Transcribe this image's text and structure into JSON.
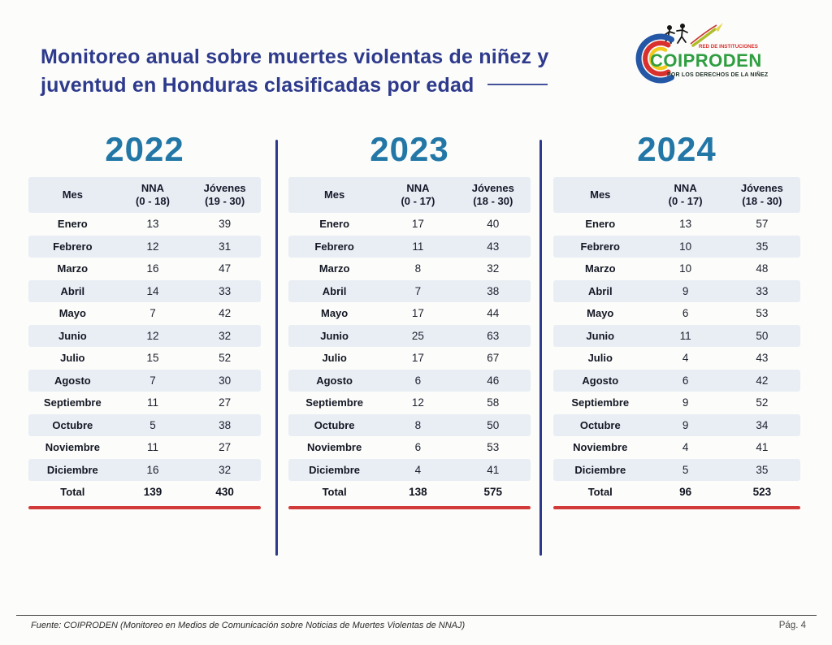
{
  "header": {
    "title_line1": "Monitoreo anual sobre muertes violentas de niñez y",
    "title_line2": "juventud en Honduras clasificadas por edad",
    "logo": {
      "tagline_top": "RED DE INSTITUCIONES",
      "name": "COIPRODEN",
      "tagline_bottom": "POR LOS DERECHOS DE LA NIÑEZ"
    }
  },
  "colors": {
    "title_navy": "#2e3a8c",
    "year_blue": "#2277a7",
    "row_alt": "#e9eef5",
    "header_bg": "#e8edf4",
    "divider_navy": "#2d3a8c",
    "accent_red": "#d23a3a",
    "logo_green": "#2f9e41",
    "logo_red": "#d8312e",
    "logo_blue": "#2457a5",
    "logo_yellow": "#f2c91d"
  },
  "tables": [
    {
      "year": "2022",
      "columns": [
        {
          "title": "Mes",
          "range": ""
        },
        {
          "title": "NNA",
          "range": "(0 - 18)"
        },
        {
          "title": "Jóvenes",
          "range": "(19 - 30)"
        }
      ],
      "rows": [
        {
          "mes": "Enero",
          "nna": "13",
          "jovenes": "39"
        },
        {
          "mes": "Febrero",
          "nna": "12",
          "jovenes": "31"
        },
        {
          "mes": "Marzo",
          "nna": "16",
          "jovenes": "47"
        },
        {
          "mes": "Abril",
          "nna": "14",
          "jovenes": "33"
        },
        {
          "mes": "Mayo",
          "nna": "7",
          "jovenes": "42"
        },
        {
          "mes": "Junio",
          "nna": "12",
          "jovenes": "32"
        },
        {
          "mes": "Julio",
          "nna": "15",
          "jovenes": "52"
        },
        {
          "mes": "Agosto",
          "nna": "7",
          "jovenes": "30"
        },
        {
          "mes": "Septiembre",
          "nna": "11",
          "jovenes": "27"
        },
        {
          "mes": "Octubre",
          "nna": "5",
          "jovenes": "38"
        },
        {
          "mes": "Noviembre",
          "nna": "11",
          "jovenes": "27"
        },
        {
          "mes": "Diciembre",
          "nna": "16",
          "jovenes": "32"
        }
      ],
      "total": {
        "mes": "Total",
        "nna": "139",
        "jovenes": "430"
      }
    },
    {
      "year": "2023",
      "columns": [
        {
          "title": "Mes",
          "range": ""
        },
        {
          "title": "NNA",
          "range": "(0 - 17)"
        },
        {
          "title": "Jóvenes",
          "range": "(18 - 30)"
        }
      ],
      "rows": [
        {
          "mes": "Enero",
          "nna": "17",
          "jovenes": "40"
        },
        {
          "mes": "Febrero",
          "nna": "11",
          "jovenes": "43"
        },
        {
          "mes": "Marzo",
          "nna": "8",
          "jovenes": "32"
        },
        {
          "mes": "Abril",
          "nna": "7",
          "jovenes": "38"
        },
        {
          "mes": "Mayo",
          "nna": "17",
          "jovenes": "44"
        },
        {
          "mes": "Junio",
          "nna": "25",
          "jovenes": "63"
        },
        {
          "mes": "Julio",
          "nna": "17",
          "jovenes": "67"
        },
        {
          "mes": "Agosto",
          "nna": "6",
          "jovenes": "46"
        },
        {
          "mes": "Septiembre",
          "nna": "12",
          "jovenes": "58"
        },
        {
          "mes": "Octubre",
          "nna": "8",
          "jovenes": "50"
        },
        {
          "mes": "Noviembre",
          "nna": "6",
          "jovenes": "53"
        },
        {
          "mes": "Diciembre",
          "nna": "4",
          "jovenes": "41"
        }
      ],
      "total": {
        "mes": "Total",
        "nna": "138",
        "jovenes": "575"
      }
    },
    {
      "year": "2024",
      "columns": [
        {
          "title": "Mes",
          "range": ""
        },
        {
          "title": "NNA",
          "range": "(0 - 17)"
        },
        {
          "title": "Jóvenes",
          "range": "(18 - 30)"
        }
      ],
      "rows": [
        {
          "mes": "Enero",
          "nna": "13",
          "jovenes": "57"
        },
        {
          "mes": "Febrero",
          "nna": "10",
          "jovenes": "35"
        },
        {
          "mes": "Marzo",
          "nna": "10",
          "jovenes": "48"
        },
        {
          "mes": "Abril",
          "nna": "9",
          "jovenes": "33"
        },
        {
          "mes": "Mayo",
          "nna": "6",
          "jovenes": "53"
        },
        {
          "mes": "Junio",
          "nna": "11",
          "jovenes": "50"
        },
        {
          "mes": "Julio",
          "nna": "4",
          "jovenes": "43"
        },
        {
          "mes": "Agosto",
          "nna": "6",
          "jovenes": "42"
        },
        {
          "mes": "Septiembre",
          "nna": "9",
          "jovenes": "52"
        },
        {
          "mes": "Octubre",
          "nna": "9",
          "jovenes": "34"
        },
        {
          "mes": "Noviembre",
          "nna": "4",
          "jovenes": "41"
        },
        {
          "mes": "Diciembre",
          "nna": "5",
          "jovenes": "35"
        }
      ],
      "total": {
        "mes": "Total",
        "nna": "96",
        "jovenes": "523"
      }
    }
  ],
  "footer": {
    "source": "Fuente: COIPRODEN (Monitoreo en Medios de Comunicación sobre Noticias de Muertes Violentas de NNAJ)",
    "page": "Pág. 4"
  }
}
